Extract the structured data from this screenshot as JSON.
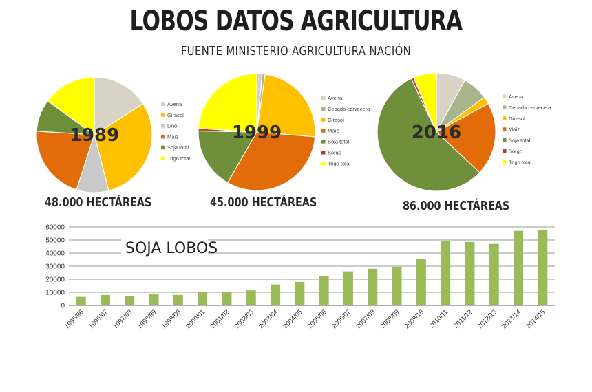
{
  "header": {
    "title": "LOBOS DATOS AGRICULTURA",
    "subtitle": "FUENTE MINISTERIO AGRICULTURA NACIÓN"
  },
  "colors": {
    "Avena": "#d8d3c5",
    "Cebada cervecera": "#a7b48c",
    "Girasol": "#ffc000",
    "Lino": "#c9c9c9",
    "Maíz": "#e36c0a",
    "Soja total": "#6f8f3a",
    "Sorgo": "#c0392b",
    "Trigo total": "#ffff00",
    "bar": "#9bbb59"
  },
  "chart_data": [
    {
      "type": "pie",
      "title": "1989",
      "caption": "48.000 HECTÁREAS",
      "start_angle_deg": 0,
      "slices": [
        {
          "label": "Avena",
          "value": 16
        },
        {
          "label": "Girasol",
          "value": 30
        },
        {
          "label": "Lino",
          "value": 9
        },
        {
          "label": "Maíz",
          "value": 21
        },
        {
          "label": "Soja total",
          "value": 9
        },
        {
          "label": "Trigo total",
          "value": 15
        }
      ],
      "legend": [
        "Avena",
        "Girasol",
        "Lino",
        "Maíz",
        "Soja total",
        "Trigo total"
      ]
    },
    {
      "type": "pie",
      "title": "1999",
      "caption": "45.000 HECTÁREAS",
      "start_angle_deg": 0,
      "slices": [
        {
          "label": "Avena",
          "value": 1.5
        },
        {
          "label": "Cebada cervecera",
          "value": 0.8
        },
        {
          "label": "Girasol",
          "value": 24
        },
        {
          "label": "Maíz",
          "value": 32
        },
        {
          "label": "Soja total",
          "value": 17
        },
        {
          "label": "Sorgo",
          "value": 0.7
        },
        {
          "label": "Trigo total",
          "value": 24
        }
      ],
      "legend": [
        "Avena",
        "Cebada cervecera",
        "Girasol",
        "Maíz",
        "Soja total",
        "Sorgo",
        "Trigo total"
      ]
    },
    {
      "type": "pie",
      "title": "2016",
      "caption": "86.000 HECTÁREAS",
      "start_angle_deg": 0,
      "slices": [
        {
          "label": "Avena",
          "value": 8
        },
        {
          "label": "Cebada cervecera",
          "value": 7
        },
        {
          "label": "Girasol",
          "value": 2
        },
        {
          "label": "Maíz",
          "value": 20
        },
        {
          "label": "Soja total",
          "value": 56
        },
        {
          "label": "Sorgo",
          "value": 0.7
        },
        {
          "label": "Trigo total",
          "value": 6.3
        }
      ],
      "legend": [
        "Avena",
        "Cebada cervecera",
        "Girasol",
        "Maíz",
        "Soja total",
        "Sorgo",
        "Trigo total"
      ]
    },
    {
      "type": "bar",
      "title": "SOJA LOBOS",
      "categories": [
        "1995/96",
        "1996/97",
        "1997/98",
        "1998/99",
        "1999/00",
        "2000/01",
        "2001/02",
        "2002/03",
        "2003/04",
        "2004/05",
        "2005/06",
        "2006/07",
        "2007/08",
        "2008/09",
        "2009/10",
        "2010/11",
        "2011/12",
        "2012/13",
        "2013/14",
        "2014/15"
      ],
      "values": [
        6500,
        8000,
        7000,
        8500,
        8000,
        10500,
        10000,
        11500,
        16000,
        18000,
        22500,
        26000,
        28000,
        29500,
        35500,
        49500,
        48500,
        47000,
        57000,
        57500
      ],
      "ylim": [
        0,
        60000
      ],
      "yticks": [
        "0",
        "10000",
        "20000",
        "30000",
        "40000",
        "50000",
        "60000"
      ],
      "grid": true,
      "xlabel": "",
      "ylabel": ""
    }
  ]
}
